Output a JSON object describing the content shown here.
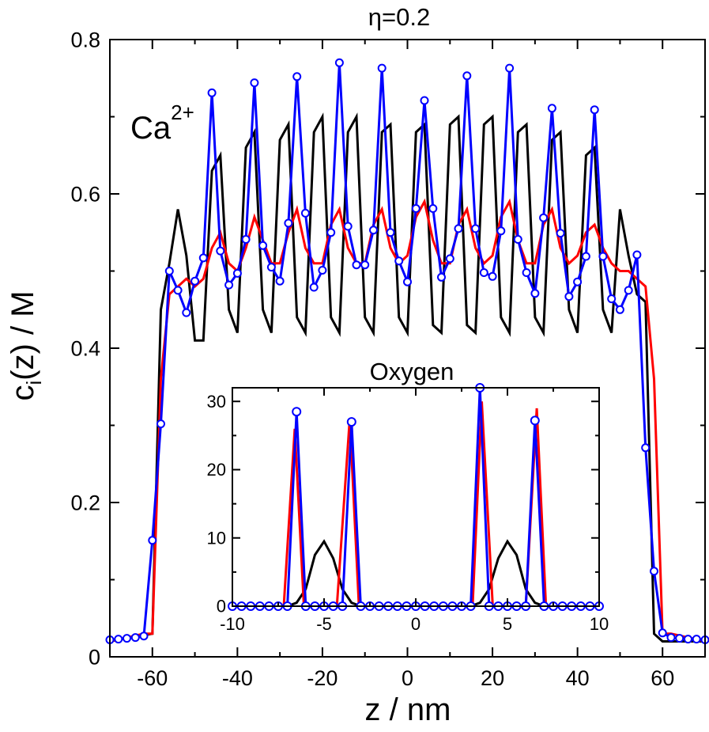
{
  "chart_data": [
    {
      "type": "line",
      "title": "η=0.2",
      "xlabel": "z / nm",
      "ylabel_main": "c",
      "ylabel_sub": "i",
      "ylabel_rest": "(z) / M",
      "annotation": "Ca",
      "annotation_sup": "2+",
      "xlim": [
        -70,
        70
      ],
      "ylim": [
        0,
        0.8
      ],
      "xticks": [
        -60,
        -40,
        -20,
        0,
        20,
        40,
        60
      ],
      "yticks": [
        0,
        0.2,
        0.4,
        0.6,
        0.8
      ],
      "xtick_labels": [
        "-60",
        "-40",
        "-20",
        "0",
        "20",
        "40",
        "60"
      ],
      "ytick_labels": [
        "0",
        "0.2",
        "0.4",
        "0.6",
        "0.8"
      ],
      "series": [
        {
          "name": "black",
          "color": "#000000",
          "markers": false,
          "x": [
            -70,
            -60,
            -58,
            -56,
            -54,
            -52,
            -50,
            -48,
            -46,
            -44,
            -42,
            -40,
            -38,
            -36,
            -34,
            -32,
            -30,
            -28,
            -26,
            -24,
            -22,
            -20,
            -18,
            -16,
            -14,
            -12,
            -10,
            -8,
            -6,
            -4,
            -2,
            0,
            2,
            4,
            6,
            8,
            10,
            12,
            14,
            16,
            18,
            20,
            22,
            24,
            26,
            28,
            30,
            32,
            34,
            36,
            38,
            40,
            42,
            44,
            46,
            48,
            50,
            52,
            54,
            56,
            58,
            60,
            70
          ],
          "y": [
            0.02,
            0.03,
            0.45,
            0.51,
            0.58,
            0.52,
            0.41,
            0.41,
            0.63,
            0.65,
            0.45,
            0.42,
            0.66,
            0.68,
            0.45,
            0.42,
            0.67,
            0.69,
            0.44,
            0.42,
            0.68,
            0.7,
            0.44,
            0.42,
            0.68,
            0.7,
            0.44,
            0.42,
            0.68,
            0.69,
            0.44,
            0.42,
            0.68,
            0.69,
            0.43,
            0.42,
            0.69,
            0.7,
            0.43,
            0.42,
            0.69,
            0.7,
            0.44,
            0.42,
            0.68,
            0.69,
            0.44,
            0.42,
            0.67,
            0.68,
            0.45,
            0.42,
            0.65,
            0.66,
            0.45,
            0.42,
            0.58,
            0.52,
            0.47,
            0.46,
            0.03,
            0.02,
            0.02
          ]
        },
        {
          "name": "red",
          "color": "#ff0000",
          "markers": false,
          "x": [
            -70,
            -62,
            -60,
            -58,
            -56,
            -54,
            -52,
            -50,
            -48,
            -46,
            -44,
            -42,
            -40,
            -38,
            -36,
            -34,
            -32,
            -30,
            -28,
            -26,
            -24,
            -22,
            -20,
            -18,
            -16,
            -14,
            -12,
            -10,
            -8,
            -6,
            -4,
            -2,
            0,
            2,
            4,
            6,
            8,
            10,
            12,
            14,
            16,
            18,
            20,
            22,
            24,
            26,
            28,
            30,
            32,
            34,
            36,
            38,
            40,
            42,
            44,
            46,
            48,
            50,
            52,
            54,
            56,
            58,
            60,
            62,
            70
          ],
          "y": [
            0.02,
            0.03,
            0.03,
            0.36,
            0.47,
            0.48,
            0.49,
            0.48,
            0.49,
            0.53,
            0.55,
            0.51,
            0.5,
            0.53,
            0.57,
            0.54,
            0.51,
            0.51,
            0.55,
            0.58,
            0.53,
            0.51,
            0.51,
            0.56,
            0.58,
            0.53,
            0.51,
            0.51,
            0.56,
            0.58,
            0.53,
            0.51,
            0.52,
            0.57,
            0.59,
            0.54,
            0.51,
            0.51,
            0.56,
            0.58,
            0.53,
            0.51,
            0.52,
            0.57,
            0.59,
            0.54,
            0.51,
            0.51,
            0.56,
            0.58,
            0.53,
            0.51,
            0.52,
            0.55,
            0.56,
            0.53,
            0.51,
            0.5,
            0.5,
            0.49,
            0.48,
            0.36,
            0.03,
            0.03,
            0.02
          ]
        },
        {
          "name": "blue",
          "color": "#0000ff",
          "markers": true,
          "x": [
            -70,
            -68,
            -66,
            -64,
            -62,
            -60,
            -58,
            -56,
            -54,
            -52,
            -50,
            -48,
            -46,
            -44,
            -42,
            -40,
            -38,
            -36,
            -34,
            -32,
            -30,
            -28,
            -26,
            -24,
            -22,
            -20,
            -18,
            -16,
            -14,
            -12,
            -10,
            -8,
            -6,
            -4,
            -2,
            0,
            2,
            4,
            6,
            8,
            10,
            12,
            14,
            16,
            18,
            20,
            22,
            24,
            26,
            28,
            30,
            32,
            34,
            36,
            38,
            40,
            42,
            44,
            46,
            48,
            50,
            52,
            54,
            56,
            58,
            60,
            62,
            64,
            66,
            68,
            70
          ],
          "y": [
            0.022,
            0.023,
            0.024,
            0.025,
            0.027,
            0.151,
            0.302,
            0.5,
            0.475,
            0.446,
            0.487,
            0.517,
            0.731,
            0.526,
            0.482,
            0.497,
            0.541,
            0.744,
            0.533,
            0.505,
            0.487,
            0.562,
            0.752,
            0.575,
            0.479,
            0.501,
            0.55,
            0.77,
            0.558,
            0.508,
            0.508,
            0.553,
            0.763,
            0.55,
            0.513,
            0.486,
            0.581,
            0.721,
            0.581,
            0.492,
            0.516,
            0.555,
            0.753,
            0.555,
            0.498,
            0.493,
            0.552,
            0.763,
            0.541,
            0.498,
            0.471,
            0.569,
            0.711,
            0.549,
            0.467,
            0.486,
            0.519,
            0.709,
            0.519,
            0.464,
            0.45,
            0.475,
            0.521,
            0.271,
            0.111,
            0.031,
            0.025,
            0.024,
            0.023,
            0.023,
            0.022
          ]
        }
      ]
    },
    {
      "type": "line",
      "title": "Oxygen",
      "xlim": [
        -10,
        10
      ],
      "ylim": [
        0,
        32
      ],
      "xticks": [
        -10,
        -5,
        0,
        5,
        10
      ],
      "yticks": [
        0,
        10,
        20,
        30
      ],
      "xtick_labels": [
        "-10",
        "-5",
        "0",
        "5",
        "10"
      ],
      "ytick_labels": [
        "0",
        "10",
        "20",
        "30"
      ],
      "series": [
        {
          "name": "black",
          "color": "#000000",
          "markers": false,
          "x": [
            -10,
            -7,
            -6.5,
            -6,
            -5.5,
            -5,
            -4.5,
            -4,
            -3.5,
            -3,
            3,
            3.5,
            4,
            4.5,
            5,
            5.5,
            6,
            6.5,
            7,
            10
          ],
          "y": [
            0,
            0,
            0.5,
            2.5,
            7.5,
            9.5,
            7,
            2.5,
            0.5,
            0,
            0,
            0.5,
            2.5,
            7,
            9.5,
            7.5,
            2.5,
            0.5,
            0,
            0
          ]
        },
        {
          "name": "red",
          "color": "#ff0000",
          "markers": false,
          "x": [
            -10,
            -7.2,
            -6.6,
            -6.1,
            -4.3,
            -3.6,
            -3.1,
            3.1,
            3.6,
            4.2,
            6.0,
            6.6,
            7.1,
            10
          ],
          "y": [
            0,
            0,
            26,
            0,
            0,
            27.5,
            0,
            0,
            30,
            0,
            0,
            29,
            0,
            0
          ]
        },
        {
          "name": "blue",
          "color": "#0000ff",
          "markers": true,
          "x": [
            -10,
            -9.5,
            -9,
            -8.5,
            -8,
            -7.5,
            -7,
            -6.5,
            -6,
            -5.5,
            -5,
            -4.5,
            -4,
            -3.5,
            -3,
            -2.5,
            -2,
            -1.5,
            -1,
            -0.5,
            0,
            0.5,
            1,
            1.5,
            2,
            2.5,
            3,
            3.5,
            4,
            4.5,
            5,
            5.5,
            6,
            6.5,
            7,
            7.5,
            8,
            8.5,
            9,
            9.5,
            10
          ],
          "y": [
            0,
            0,
            0,
            0,
            0,
            0,
            0,
            28.5,
            0,
            0,
            0,
            0,
            0,
            27,
            0,
            0,
            0,
            0,
            0,
            0,
            0,
            0,
            0,
            0,
            0,
            0,
            0,
            32,
            0,
            0,
            0,
            0,
            0,
            27.2,
            0,
            0,
            0,
            0,
            0,
            0,
            0
          ]
        }
      ]
    }
  ]
}
